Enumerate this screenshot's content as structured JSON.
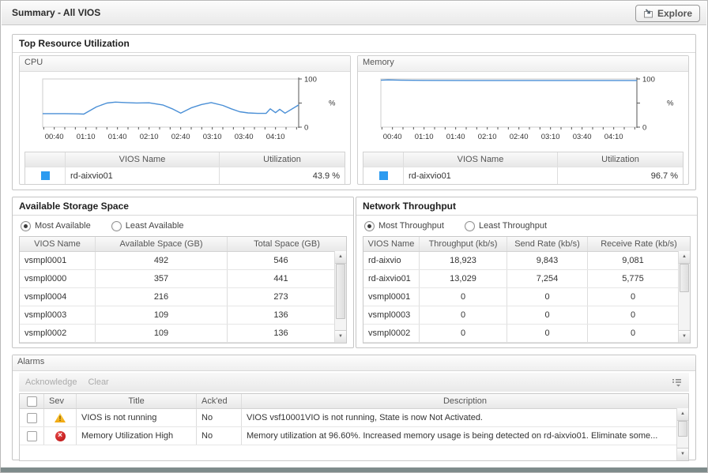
{
  "titlebar": {
    "title": "Summary - All VIOS",
    "explore_label": "Explore"
  },
  "colors": {
    "accent_blue": "#2d9bf0",
    "chart_line": "#4a8fd6",
    "warning": "#f0a70e",
    "fatal": "#c01212"
  },
  "top_resource": {
    "title": "Top Resource Utilization",
    "cpu": {
      "title": "CPU",
      "legend_headers": [
        "VIOS Name",
        "Utilization"
      ],
      "rows": [
        {
          "name": "rd-aixvio01",
          "value": "43.9 %"
        }
      ]
    },
    "memory": {
      "title": "Memory",
      "legend_headers": [
        "VIOS Name",
        "Utilization"
      ],
      "rows": [
        {
          "name": "rd-aixvio01",
          "value": "96.7 %"
        }
      ]
    }
  },
  "chart_data": [
    {
      "type": "line",
      "title": "CPU Utilization (%)",
      "ylabel": "%",
      "ylim": [
        0,
        100
      ],
      "y_ticks": [
        0,
        50,
        100
      ],
      "y_tick_labels": {
        "top": "100",
        "bottom": "0"
      },
      "x_range": [
        29,
        272
      ],
      "minor_ticks": [
        30,
        270,
        10
      ],
      "x_labels": [
        {
          "t": 40,
          "text": "00:40"
        },
        {
          "t": 70,
          "text": "01:10"
        },
        {
          "t": 100,
          "text": "01:40"
        },
        {
          "t": 130,
          "text": "02:10"
        },
        {
          "t": 160,
          "text": "02:40"
        },
        {
          "t": 190,
          "text": "03:10"
        },
        {
          "t": 220,
          "text": "03:40"
        },
        {
          "t": 250,
          "text": "04:10"
        }
      ],
      "series": [
        {
          "name": "rd-aixvio01",
          "color": "#4a8fd6",
          "points": [
            [
              29,
              28
            ],
            [
              50,
              28
            ],
            [
              63,
              27.5
            ],
            [
              68,
              27
            ],
            [
              80,
              42
            ],
            [
              90,
              50
            ],
            [
              98,
              52
            ],
            [
              108,
              51
            ],
            [
              118,
              50.2
            ],
            [
              130,
              50.5
            ],
            [
              143,
              46
            ],
            [
              152,
              38
            ],
            [
              160,
              29
            ],
            [
              170,
              40
            ],
            [
              180,
              47
            ],
            [
              189,
              51
            ],
            [
              200,
              45
            ],
            [
              208,
              38
            ],
            [
              216,
              32
            ],
            [
              224,
              29.5
            ],
            [
              233,
              28.5
            ],
            [
              241,
              28.5
            ],
            [
              245,
              38
            ],
            [
              250,
              30
            ],
            [
              254,
              37
            ],
            [
              259,
              29
            ],
            [
              272,
              46
            ]
          ]
        }
      ],
      "grid": false,
      "legend_position": "table-below"
    },
    {
      "type": "line",
      "title": "Memory Utilization (%)",
      "ylabel": "%",
      "ylim": [
        0,
        100
      ],
      "y_ticks": [
        0,
        50,
        100
      ],
      "y_tick_labels": {
        "top": "100",
        "bottom": "0"
      },
      "x_range": [
        29,
        272
      ],
      "minor_ticks": [
        30,
        270,
        10
      ],
      "x_labels": [
        {
          "t": 40,
          "text": "00:40"
        },
        {
          "t": 70,
          "text": "01:10"
        },
        {
          "t": 100,
          "text": "01:40"
        },
        {
          "t": 130,
          "text": "02:10"
        },
        {
          "t": 160,
          "text": "02:40"
        },
        {
          "t": 190,
          "text": "03:10"
        },
        {
          "t": 220,
          "text": "03:40"
        },
        {
          "t": 250,
          "text": "04:10"
        }
      ],
      "series": [
        {
          "name": "rd-aixvio01",
          "color": "#4a8fd6",
          "points": [
            [
              29,
              97.4
            ],
            [
              36,
              98.1
            ],
            [
              48,
              97.3
            ],
            [
              70,
              97
            ],
            [
              110,
              96.9
            ],
            [
              160,
              96.9
            ],
            [
              210,
              96.9
            ],
            [
              260,
              96.9
            ],
            [
              272,
              96.9
            ]
          ]
        }
      ],
      "grid": false,
      "legend_position": "table-below"
    }
  ],
  "storage": {
    "title": "Available Storage Space",
    "radios": [
      {
        "label": "Most Available",
        "selected": true
      },
      {
        "label": "Least Available",
        "selected": false
      }
    ],
    "headers": [
      "VIOS Name",
      "Available Space (GB)",
      "Total Space (GB)"
    ],
    "rows": [
      [
        "vsmpl0001",
        "492",
        "546"
      ],
      [
        "vsmpl0000",
        "357",
        "441"
      ],
      [
        "vsmpl0004",
        "216",
        "273"
      ],
      [
        "vsmpl0003",
        "109",
        "136"
      ],
      [
        "vsmpl0002",
        "109",
        "136"
      ]
    ]
  },
  "network": {
    "title": "Network Throughput",
    "radios": [
      {
        "label": "Most Throughput",
        "selected": true
      },
      {
        "label": "Least Throughput",
        "selected": false
      }
    ],
    "headers": [
      "VIOS Name",
      "Throughput (kb/s)",
      "Send Rate (kb/s)",
      "Receive Rate (kb/s)"
    ],
    "rows": [
      [
        "rd-aixvio",
        "18,923",
        "9,843",
        "9,081"
      ],
      [
        "rd-aixvio01",
        "13,029",
        "7,254",
        "5,775"
      ],
      [
        "vsmpl0001",
        "0",
        "0",
        "0"
      ],
      [
        "vsmpl0003",
        "0",
        "0",
        "0"
      ],
      [
        "vsmpl0002",
        "0",
        "0",
        "0"
      ]
    ]
  },
  "alarms": {
    "title": "Alarms",
    "toolbar": {
      "acknowledge": "Acknowledge",
      "clear": "Clear"
    },
    "headers": [
      "Sev",
      "Title",
      "Ack'ed",
      "Description"
    ],
    "rows": [
      {
        "severity": "warning",
        "title": "VIOS is not running",
        "acked": "No",
        "description": "VIOS vsf10001VIO is not running, State is now Not Activated."
      },
      {
        "severity": "fatal",
        "title": "Memory Utilization High",
        "acked": "No",
        "description": "Memory utilization at 96.60%. Increased memory usage is being detected on rd-aixvio01. Eliminate some..."
      }
    ]
  }
}
